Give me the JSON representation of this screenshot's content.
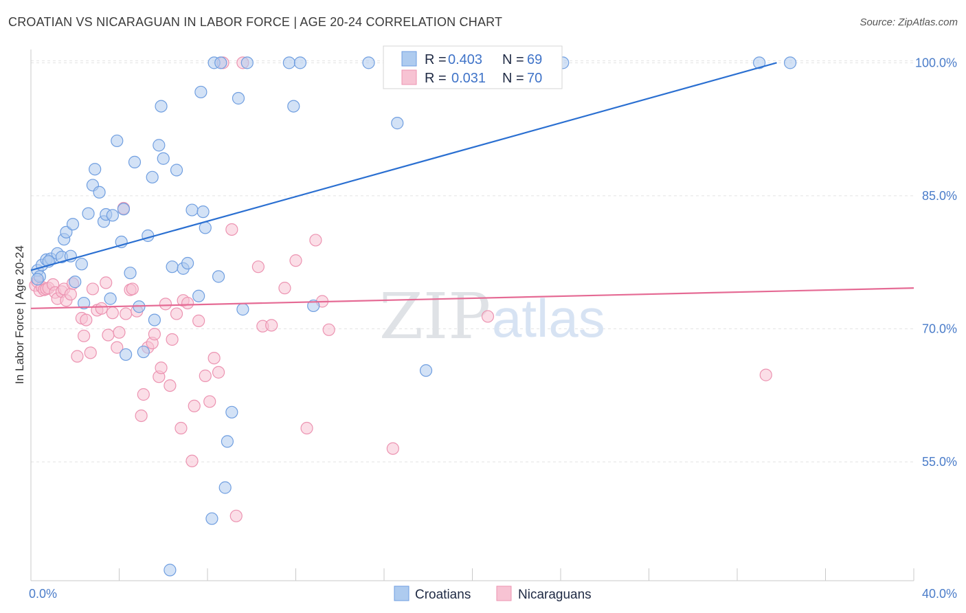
{
  "title": "CROATIAN VS NICARAGUAN IN LABOR FORCE | AGE 20-24 CORRELATION CHART",
  "source": "Source: ZipAtlas.com",
  "watermark": {
    "zip": "ZIP",
    "atlas": "atlas"
  },
  "colors": {
    "croatians_fill": "#aecbef",
    "croatians_stroke": "#6f9ee0",
    "croatians_line": "#2a6fd1",
    "nicaraguans_fill": "#f7c3d3",
    "nicaraguans_stroke": "#ec93b1",
    "nicaraguans_line": "#e56a94",
    "grid": "#e3e3e3",
    "tick_label": "#4a7cc9"
  },
  "legend": {
    "rows": [
      {
        "r_label": "R =",
        "r_value": "0.403",
        "n_label": "N =",
        "n_value": "69"
      },
      {
        "r_label": "R =",
        "r_value": "0.031",
        "n_label": "N =",
        "n_value": "70"
      }
    ]
  },
  "bottom_legend": [
    "Croatians",
    "Nicaraguans"
  ],
  "chart_data": {
    "type": "scatter",
    "title": "CROATIAN VS NICARAGUAN IN LABOR FORCE | AGE 20-24 CORRELATION CHART",
    "xlabel": "",
    "ylabel": "In Labor Force | Age 20-24",
    "xlim": [
      0,
      40
    ],
    "ylim": [
      41.6,
      101.5
    ],
    "x_tick_labels": [
      "0.0%",
      "40.0%"
    ],
    "y_ticks": [
      55,
      70,
      85,
      100
    ],
    "y_tick_labels": [
      "55.0%",
      "70.0%",
      "85.0%",
      "100.0%"
    ],
    "grid": true,
    "legend_position": "top-center",
    "series": [
      {
        "name": "Croatians",
        "r": 0.403,
        "n": 69,
        "trend": {
          "x0": 0.0,
          "y0": 76.6,
          "x1": 40.0,
          "y1": 104.3
        },
        "points": [
          [
            0.3,
            76.6
          ],
          [
            0.4,
            75.9
          ],
          [
            0.5,
            77.2
          ],
          [
            0.3,
            75.6
          ],
          [
            0.7,
            77.8
          ],
          [
            0.9,
            77.9
          ],
          [
            0.8,
            77.6
          ],
          [
            1.2,
            78.5
          ],
          [
            1.4,
            78.1
          ],
          [
            1.5,
            80.1
          ],
          [
            1.6,
            80.9
          ],
          [
            1.8,
            78.2
          ],
          [
            1.9,
            81.8
          ],
          [
            2.0,
            75.3
          ],
          [
            2.3,
            77.3
          ],
          [
            2.4,
            72.9
          ],
          [
            2.6,
            83.0
          ],
          [
            2.8,
            86.2
          ],
          [
            2.9,
            88.0
          ],
          [
            3.1,
            85.4
          ],
          [
            3.3,
            82.1
          ],
          [
            3.4,
            82.9
          ],
          [
            3.6,
            73.4
          ],
          [
            3.7,
            82.8
          ],
          [
            3.9,
            91.2
          ],
          [
            4.1,
            79.8
          ],
          [
            4.2,
            83.5
          ],
          [
            4.3,
            67.1
          ],
          [
            4.5,
            76.3
          ],
          [
            4.7,
            88.8
          ],
          [
            4.9,
            72.5
          ],
          [
            5.1,
            67.4
          ],
          [
            5.3,
            80.5
          ],
          [
            5.5,
            87.1
          ],
          [
            5.6,
            71.0
          ],
          [
            5.8,
            90.7
          ],
          [
            5.9,
            95.1
          ],
          [
            6.0,
            89.2
          ],
          [
            6.3,
            42.8
          ],
          [
            6.4,
            77.0
          ],
          [
            6.6,
            87.9
          ],
          [
            6.9,
            76.8
          ],
          [
            7.1,
            77.4
          ],
          [
            7.3,
            83.4
          ],
          [
            7.6,
            73.7
          ],
          [
            7.7,
            96.7
          ],
          [
            7.8,
            83.2
          ],
          [
            7.9,
            81.4
          ],
          [
            8.2,
            48.6
          ],
          [
            8.3,
            100.0
          ],
          [
            8.5,
            75.9
          ],
          [
            8.6,
            100.0
          ],
          [
            8.8,
            52.1
          ],
          [
            8.9,
            57.3
          ],
          [
            9.1,
            60.6
          ],
          [
            9.4,
            96.0
          ],
          [
            9.6,
            72.2
          ],
          [
            9.8,
            100.0
          ],
          [
            11.7,
            100.0
          ],
          [
            11.9,
            95.1
          ],
          [
            12.2,
            100.0
          ],
          [
            12.8,
            72.6
          ],
          [
            15.3,
            100.0
          ],
          [
            16.6,
            93.2
          ],
          [
            17.9,
            65.3
          ],
          [
            22.4,
            100.0
          ],
          [
            24.1,
            100.0
          ],
          [
            33.0,
            100.0
          ],
          [
            34.4,
            100.0
          ]
        ]
      },
      {
        "name": "Nicaraguans",
        "r": 0.031,
        "n": 70,
        "trend": {
          "x0": 0.0,
          "y0": 72.3,
          "x1": 40.0,
          "y1": 74.6
        },
        "points": [
          [
            0.2,
            74.9
          ],
          [
            0.3,
            75.3
          ],
          [
            0.4,
            74.3
          ],
          [
            0.5,
            74.7
          ],
          [
            0.6,
            74.4
          ],
          [
            0.7,
            74.5
          ],
          [
            0.8,
            74.6
          ],
          [
            1.0,
            75.0
          ],
          [
            1.1,
            74.1
          ],
          [
            1.2,
            73.4
          ],
          [
            1.4,
            74.2
          ],
          [
            1.5,
            74.5
          ],
          [
            1.6,
            73.2
          ],
          [
            1.8,
            73.9
          ],
          [
            1.9,
            75.1
          ],
          [
            2.1,
            66.9
          ],
          [
            2.3,
            71.2
          ],
          [
            2.4,
            69.2
          ],
          [
            2.5,
            71.0
          ],
          [
            2.7,
            67.3
          ],
          [
            2.8,
            74.5
          ],
          [
            3.0,
            72.1
          ],
          [
            3.2,
            72.3
          ],
          [
            3.4,
            75.2
          ],
          [
            3.5,
            69.3
          ],
          [
            3.7,
            71.8
          ],
          [
            3.9,
            67.9
          ],
          [
            4.0,
            69.6
          ],
          [
            4.2,
            83.6
          ],
          [
            4.3,
            71.7
          ],
          [
            4.5,
            74.4
          ],
          [
            4.6,
            74.5
          ],
          [
            4.8,
            72.0
          ],
          [
            5.0,
            60.2
          ],
          [
            5.1,
            62.6
          ],
          [
            5.3,
            67.9
          ],
          [
            5.5,
            68.4
          ],
          [
            5.6,
            69.4
          ],
          [
            5.8,
            64.6
          ],
          [
            5.9,
            65.6
          ],
          [
            6.1,
            72.8
          ],
          [
            6.3,
            63.6
          ],
          [
            6.4,
            68.8
          ],
          [
            6.6,
            71.7
          ],
          [
            6.8,
            58.8
          ],
          [
            6.9,
            73.2
          ],
          [
            7.1,
            72.9
          ],
          [
            7.3,
            55.1
          ],
          [
            7.4,
            61.3
          ],
          [
            7.6,
            70.9
          ],
          [
            7.9,
            64.7
          ],
          [
            8.1,
            61.8
          ],
          [
            8.3,
            66.7
          ],
          [
            8.5,
            65.1
          ],
          [
            8.7,
            100.0
          ],
          [
            9.1,
            81.2
          ],
          [
            9.3,
            48.9
          ],
          [
            9.6,
            100.0
          ],
          [
            10.3,
            77.0
          ],
          [
            10.5,
            70.3
          ],
          [
            10.9,
            70.4
          ],
          [
            11.5,
            74.6
          ],
          [
            12.0,
            77.7
          ],
          [
            12.5,
            58.8
          ],
          [
            12.9,
            80.0
          ],
          [
            13.2,
            73.1
          ],
          [
            13.5,
            69.9
          ],
          [
            16.4,
            56.5
          ],
          [
            20.7,
            71.4
          ],
          [
            33.3,
            64.8
          ]
        ]
      }
    ]
  }
}
